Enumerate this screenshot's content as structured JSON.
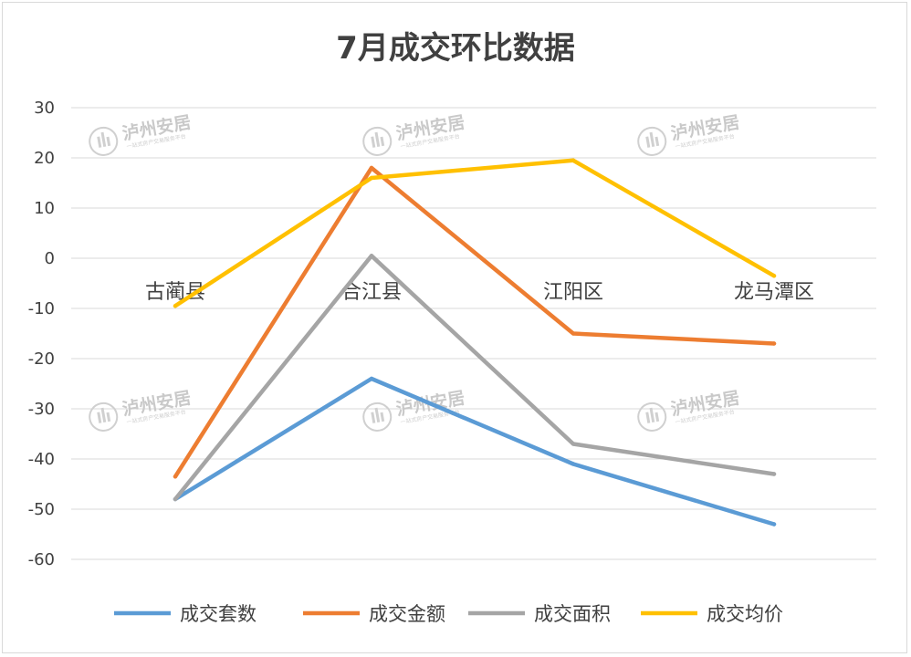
{
  "chart_data": {
    "type": "line",
    "title": "7月成交环比数据",
    "categories": [
      "古蔺县",
      "合江县",
      "江阳区",
      "龙马潭区"
    ],
    "series": [
      {
        "name": "成交套数",
        "color": "#5b9bd5",
        "values": [
          -48,
          -24,
          -41,
          -53
        ]
      },
      {
        "name": "成交金额",
        "color": "#ed7d31",
        "values": [
          -43.5,
          18,
          -15,
          -17
        ]
      },
      {
        "name": "成交面积",
        "color": "#a5a5a5",
        "values": [
          -48,
          0.5,
          -37,
          -43
        ]
      },
      {
        "name": "成交均价",
        "color": "#ffc000",
        "values": [
          -9.5,
          16,
          19.5,
          -3.5
        ]
      }
    ],
    "yticks": [
      "30",
      "20",
      "10",
      "0",
      "-10",
      "-20",
      "-30",
      "-40",
      "-50",
      "-60"
    ],
    "ylim": [
      -60,
      30
    ],
    "grid": true,
    "legend": "bottom"
  },
  "watermark": {
    "name": "泸州安居",
    "tagline": "一站式房产交易服务平台"
  }
}
